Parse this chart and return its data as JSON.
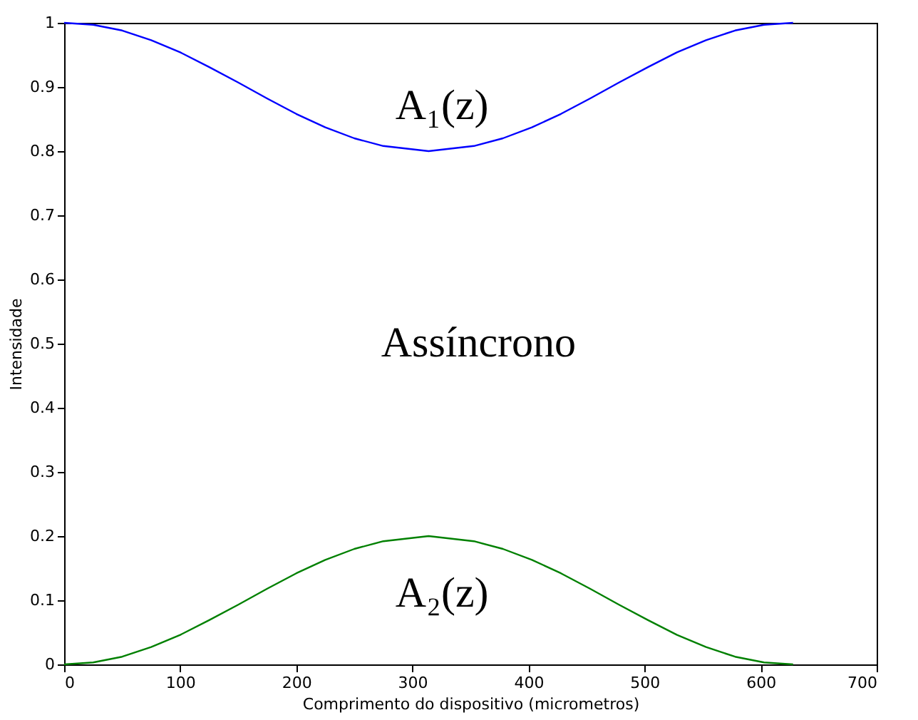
{
  "chart_data": {
    "type": "line",
    "xlabel": "Comprimento do dispositivo (micrometros)",
    "ylabel": "Intensidade",
    "xlim": [
      0,
      700
    ],
    "xticks": [
      0,
      100,
      200,
      300,
      400,
      500,
      600,
      700
    ],
    "ylim": [
      0,
      1
    ],
    "yticks": [
      0,
      0.1,
      0.2,
      0.3,
      0.4,
      0.5,
      0.6,
      0.7,
      0.8,
      0.9,
      1
    ],
    "grid": false,
    "series": [
      {
        "x": [
          0,
          25,
          50,
          75,
          100,
          125,
          150,
          175,
          200,
          225,
          250,
          275,
          314,
          353,
          378,
          403,
          428,
          453,
          478,
          503,
          528,
          553,
          578,
          603,
          628
        ],
        "color": "#0000ff",
        "values": [
          1,
          0.997,
          0.988,
          0.973,
          0.954,
          0.931,
          0.907,
          0.882,
          0.858,
          0.837,
          0.82,
          0.808,
          0.8,
          0.808,
          0.82,
          0.837,
          0.858,
          0.882,
          0.907,
          0.931,
          0.954,
          0.973,
          0.988,
          0.997,
          1
        ]
      },
      {
        "x": [
          0,
          25,
          50,
          75,
          100,
          125,
          150,
          175,
          200,
          225,
          250,
          275,
          314,
          353,
          378,
          403,
          428,
          453,
          478,
          503,
          528,
          553,
          578,
          603,
          628
        ],
        "color": "#008000",
        "values": [
          0,
          0.003,
          0.012,
          0.027,
          0.046,
          0.069,
          0.093,
          0.118,
          0.142,
          0.163,
          0.18,
          0.192,
          0.2,
          0.192,
          0.18,
          0.163,
          0.142,
          0.118,
          0.093,
          0.069,
          0.046,
          0.027,
          0.012,
          0.003,
          0
        ]
      }
    ],
    "annotations": [
      "A₁(z)",
      "Assíncrono",
      "A₂(z)"
    ]
  }
}
